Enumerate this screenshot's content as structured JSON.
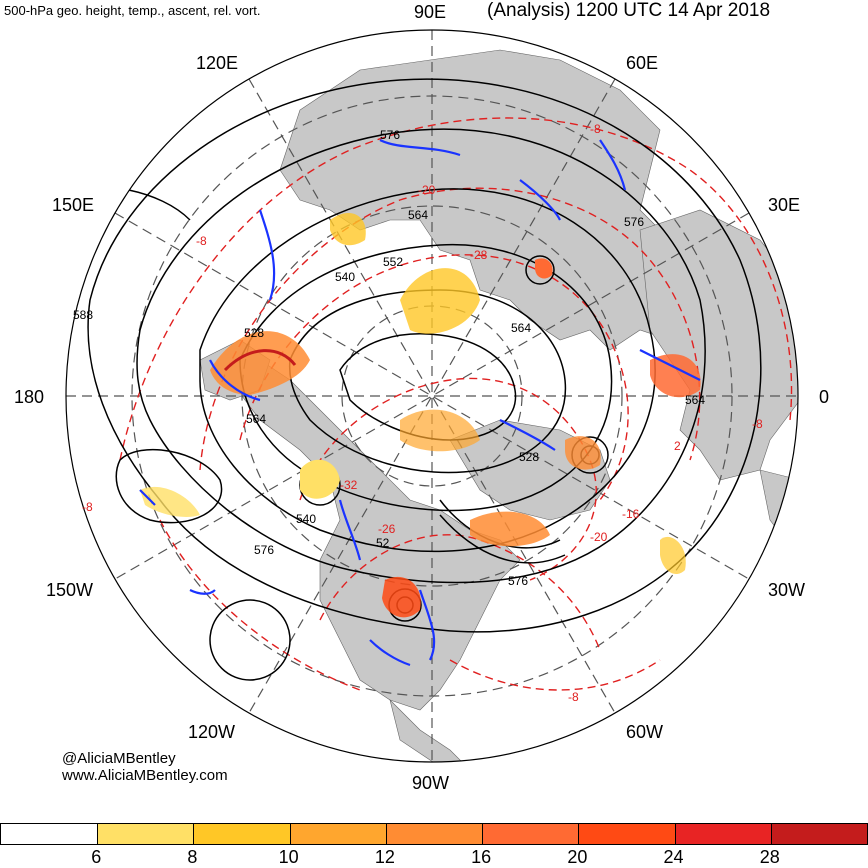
{
  "title_left": "500-hPa geo. height, temp., ascent, rel. vort.",
  "title_right": "(Analysis) 1200 UTC 14 Apr 2018",
  "longitudes": {
    "lon_90e": "90E",
    "lon_120e": "120E",
    "lon_60e": "60E",
    "lon_150e": "150E",
    "lon_30e": "30E",
    "lon_180": "180",
    "lon_0": "0",
    "lon_150w": "150W",
    "lon_30w": "30W",
    "lon_120w": "120W",
    "lon_60w": "60W",
    "lon_90w": "90W"
  },
  "height_labels": {
    "h576a": "576",
    "h564a": "564",
    "h552": "552",
    "h540a": "540",
    "h528a": "528",
    "h588": "588",
    "h564b": "564",
    "h540b": "540",
    "h576b": "576",
    "h576c": "576",
    "h564c": "564",
    "h564d": "564",
    "h528b": "528",
    "h576d": "576",
    "h52": "52"
  },
  "temp_labels": {
    "t8a": "-8",
    "t8b": "-8",
    "t20": "-20",
    "t28": "-28",
    "t32": "-32",
    "t8c": "-8",
    "t8d": "-8",
    "t16": "-16",
    "t20b": "-20",
    "t8e": "-8",
    "t2": "2",
    "t26": "-26"
  },
  "credits": {
    "handle": "@AliciaMBentley",
    "website": "www.AliciaMBentley.com"
  },
  "colorbar": {
    "ticks": [
      "6",
      "8",
      "10",
      "12",
      "16",
      "20",
      "24",
      "28"
    ],
    "colors": [
      "#ffffff",
      "#ffe066",
      "#ffc726",
      "#ffa62e",
      "#ff8c33",
      "#ff6a33",
      "#ff4a14",
      "#e82424",
      "#c41c1c"
    ]
  },
  "colors": {
    "land": "#c8c8c8",
    "height_contour": "#000000",
    "temperature_contour": "#e02020",
    "ascent": "#1a33ff",
    "vorticity_high": "#e85a10",
    "vorticity_low": "#ffd040",
    "graticule": "#555555"
  }
}
